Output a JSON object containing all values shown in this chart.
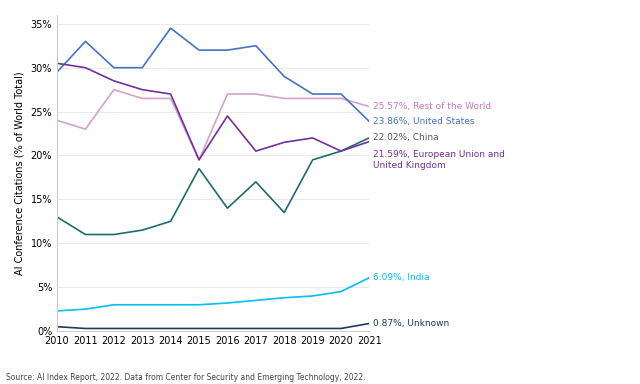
{
  "years": [
    2010,
    2011,
    2012,
    2013,
    2014,
    2015,
    2016,
    2017,
    2018,
    2019,
    2020,
    2021
  ],
  "series": [
    {
      "name": "Rest of the World",
      "values": [
        24.0,
        23.0,
        27.5,
        26.5,
        26.5,
        19.5,
        27.0,
        27.0,
        26.5,
        26.5,
        26.5,
        25.57
      ],
      "color": "#D4A0CC",
      "label": "25.57%, Rest of the World",
      "label_color": "#C878B8"
    },
    {
      "name": "United States",
      "values": [
        29.5,
        33.0,
        30.0,
        30.0,
        34.5,
        32.0,
        32.0,
        32.5,
        29.0,
        27.0,
        27.0,
        23.86
      ],
      "color": "#4472C4",
      "label": "23.86%, United States",
      "label_color": "#4472C4"
    },
    {
      "name": "China",
      "values": [
        13.0,
        11.0,
        11.0,
        11.5,
        12.5,
        18.5,
        14.0,
        17.0,
        13.5,
        19.5,
        20.5,
        22.02
      ],
      "color": "#1F6B6B",
      "label": "22.02%, China",
      "label_color": "#444444"
    },
    {
      "name": "European Union and United Kingdom",
      "values": [
        30.5,
        30.0,
        28.5,
        27.5,
        27.0,
        19.5,
        24.5,
        20.5,
        21.5,
        22.0,
        20.5,
        21.59
      ],
      "color": "#7030A0",
      "label": "21.59%, European Union and\nUnited Kingdom",
      "label_color": "#7030A0"
    },
    {
      "name": "India",
      "values": [
        2.3,
        2.5,
        3.0,
        3.0,
        3.0,
        3.0,
        3.2,
        3.5,
        3.8,
        4.0,
        4.5,
        6.09
      ],
      "color": "#00BFFF",
      "label": "6.09%, India",
      "label_color": "#00BFFF"
    },
    {
      "name": "Unknown",
      "values": [
        0.5,
        0.3,
        0.3,
        0.3,
        0.3,
        0.3,
        0.3,
        0.3,
        0.3,
        0.3,
        0.3,
        0.87
      ],
      "color": "#1F3864",
      "label": "0.87%, Unknown",
      "label_color": "#1F3864"
    }
  ],
  "ylabel": "AI Conference Citations (% of World Total)",
  "source": "Source: AI Index Report, 2022. Data from Center for Security and Emerging Technology, 2022.",
  "ylim": [
    0,
    36
  ],
  "yticks": [
    0,
    5,
    10,
    15,
    20,
    25,
    30,
    35
  ],
  "background_color": "#FFFFFF"
}
